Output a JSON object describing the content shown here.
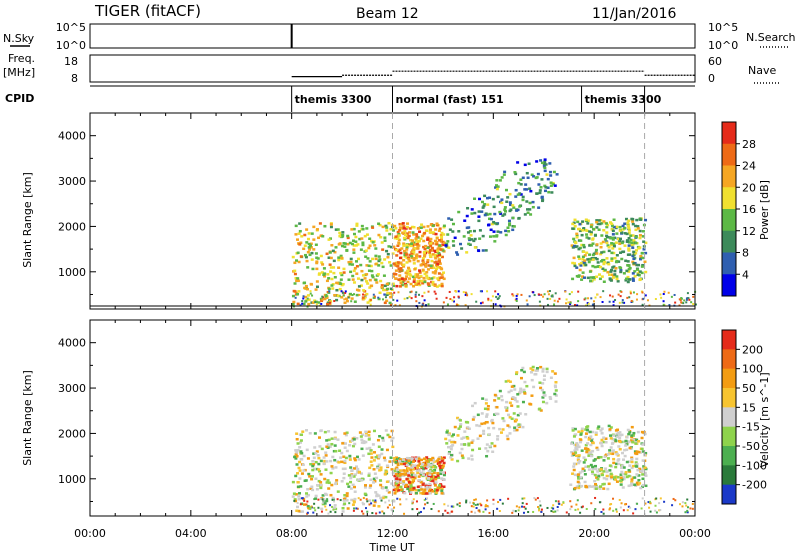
{
  "header": {
    "title": "TIGER (fitACF)",
    "beam": "Beam 12",
    "date": "11/Jan/2016"
  },
  "strips": {
    "nsky": {
      "label": "N.Sky",
      "ticks": [
        "10^5",
        "10^0"
      ],
      "right_label": "N.Search",
      "right_ticks": [
        "10^5",
        "10^0"
      ],
      "spike_hour": 8.0
    },
    "freq": {
      "label_top": "Freq.",
      "label_unit": "[MHz]",
      "ticks": [
        "18",
        "8"
      ],
      "right_label": "Nave",
      "right_ticks": [
        "60",
        "0"
      ],
      "line_segments": [
        {
          "start": 8.0,
          "end": 10.0,
          "value": 10.0
        },
        {
          "start": 10.0,
          "end": 12.0,
          "value": 10.5
        },
        {
          "start": 12.0,
          "end": 22.0,
          "value": 12.0
        },
        {
          "start": 22.0,
          "end": 24.0,
          "value": 10.5
        }
      ]
    },
    "cpid": {
      "label": "CPID",
      "segments": [
        {
          "start": 8.0,
          "end": 12.0,
          "label": "themis 3300"
        },
        {
          "start": 12.0,
          "end": 19.5,
          "label": "normal (fast) 151"
        },
        {
          "start": 19.5,
          "end": 22.0,
          "label": "themis 3300"
        }
      ]
    }
  },
  "chart_data": [
    {
      "type": "heatmap",
      "parameter": "Power",
      "ylabel": "Slant Range [km]",
      "ylim": [
        180,
        4500
      ],
      "yticks": [
        "1000",
        "2000",
        "3000",
        "4000"
      ],
      "xlim_hours": [
        0,
        24
      ],
      "colorbar": {
        "label": "Power [dB]",
        "tick_labels": [
          "4",
          "8",
          "12",
          "16",
          "20",
          "24",
          "28"
        ],
        "colors": [
          "#0000e8",
          "#2f5fb0",
          "#3c8a5a",
          "#5cb845",
          "#f0e030",
          "#f5a623",
          "#ee6a16",
          "#e52b1a"
        ]
      },
      "echo_regions": [
        {
          "t0": 8.0,
          "t1": 12.0,
          "r0": 300,
          "r1": 2100,
          "level": 16
        },
        {
          "t0": 12.0,
          "t1": 14.0,
          "r0": 700,
          "r1": 2100,
          "level": 20
        },
        {
          "t0": 14.0,
          "t1": 18.5,
          "r0": 1400,
          "r1": 3500,
          "level": 8
        },
        {
          "t0": 19.0,
          "t1": 22.0,
          "r0": 800,
          "r1": 2200,
          "level": 12
        }
      ]
    },
    {
      "type": "heatmap",
      "parameter": "Velocity",
      "ylabel": "Slant Range [km]",
      "ylim": [
        180,
        4500
      ],
      "yticks": [
        "1000",
        "2000",
        "3000",
        "4000"
      ],
      "xlim_hours": [
        0,
        24
      ],
      "xticks": [
        "00:00",
        "04:00",
        "08:00",
        "12:00",
        "16:00",
        "20:00",
        "00:00"
      ],
      "xlabel": "Time UT",
      "colorbar": {
        "label": "Velocity [m s^-1]",
        "tick_labels": [
          "200",
          "100",
          "50",
          "15",
          "-15",
          "-50",
          "-100",
          "-200"
        ],
        "colors": [
          "#1b39c8",
          "#2a7a3a",
          "#4caf50",
          "#8ed34c",
          "#cfcfcf",
          "#f7c430",
          "#f39c12",
          "#ee6a16",
          "#e52b1a"
        ]
      },
      "echo_regions": [
        {
          "t0": 8.0,
          "t1": 12.0,
          "r0": 300,
          "r1": 2100,
          "level": 0
        },
        {
          "t0": 12.0,
          "t1": 14.0,
          "r0": 700,
          "r1": 1500,
          "level": 80
        },
        {
          "t0": 14.0,
          "t1": 18.5,
          "r0": 1400,
          "r1": 3500,
          "level": -30
        },
        {
          "t0": 19.0,
          "t1": 22.0,
          "r0": 800,
          "r1": 2200,
          "level": 0
        }
      ]
    }
  ]
}
